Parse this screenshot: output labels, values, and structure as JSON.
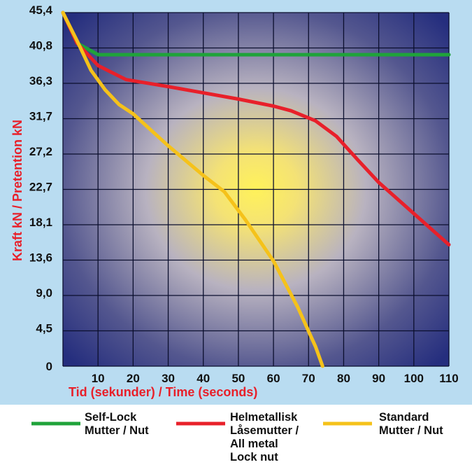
{
  "chart_data": {
    "type": "line",
    "xlabel": "Tid (sekunder) / Time (seconds)",
    "ylabel": "Kraft kN / Pretention kN",
    "x_ticks": [
      10,
      20,
      30,
      40,
      50,
      60,
      70,
      80,
      90,
      100,
      110
    ],
    "y_ticks": [
      "0",
      "4,5",
      "9,0",
      "13,6",
      "18,1",
      "22,7",
      "27,2",
      "31,7",
      "36,3",
      "40,8",
      "45,4"
    ],
    "xlim": [
      0,
      110
    ],
    "ylim": [
      0,
      45.4
    ],
    "grid": true,
    "legend_position": "bottom",
    "series": [
      {
        "name_lines": [
          "Self-Lock",
          "Mutter / Nut"
        ],
        "color": "#1fa33a",
        "points": [
          [
            0,
            45.4
          ],
          [
            4,
            41.5
          ],
          [
            10,
            40.0
          ],
          [
            20,
            40.0
          ],
          [
            50,
            40.0
          ],
          [
            80,
            40.0
          ],
          [
            110,
            40.0
          ]
        ]
      },
      {
        "name_lines": [
          "Helmetallisk",
          "Låsemutter /",
          "All metal",
          "Lock nut"
        ],
        "color": "#e8202a",
        "points": [
          [
            0,
            45.4
          ],
          [
            4,
            41.5
          ],
          [
            10,
            38.6
          ],
          [
            18,
            36.8
          ],
          [
            30,
            35.9
          ],
          [
            40,
            35.1
          ],
          [
            50,
            34.3
          ],
          [
            60,
            33.4
          ],
          [
            65,
            32.8
          ],
          [
            72,
            31.5
          ],
          [
            78,
            29.5
          ],
          [
            84,
            26.5
          ],
          [
            90,
            23.6
          ],
          [
            100,
            19.6
          ],
          [
            110,
            15.6
          ]
        ]
      },
      {
        "name_lines": [
          "Standard",
          "Mutter / Nut"
        ],
        "color": "#f5c21a",
        "points": [
          [
            0,
            45.4
          ],
          [
            4,
            41.8
          ],
          [
            8,
            38.0
          ],
          [
            12,
            35.5
          ],
          [
            16,
            33.6
          ],
          [
            20,
            32.4
          ],
          [
            30,
            28.3
          ],
          [
            40,
            24.5
          ],
          [
            46,
            22.4
          ],
          [
            52,
            18.8
          ],
          [
            60,
            13.5
          ],
          [
            67,
            7.5
          ],
          [
            72,
            2.5
          ],
          [
            74,
            0
          ]
        ]
      }
    ]
  },
  "colors": {
    "plot_background_center": "#fff25a",
    "plot_background_mid": "#b8b2c0",
    "plot_background_edge": "#252e7e",
    "frame_background": "#b9dcf1",
    "grid": "#0b0f2e",
    "axis_title": "#e8202a"
  }
}
